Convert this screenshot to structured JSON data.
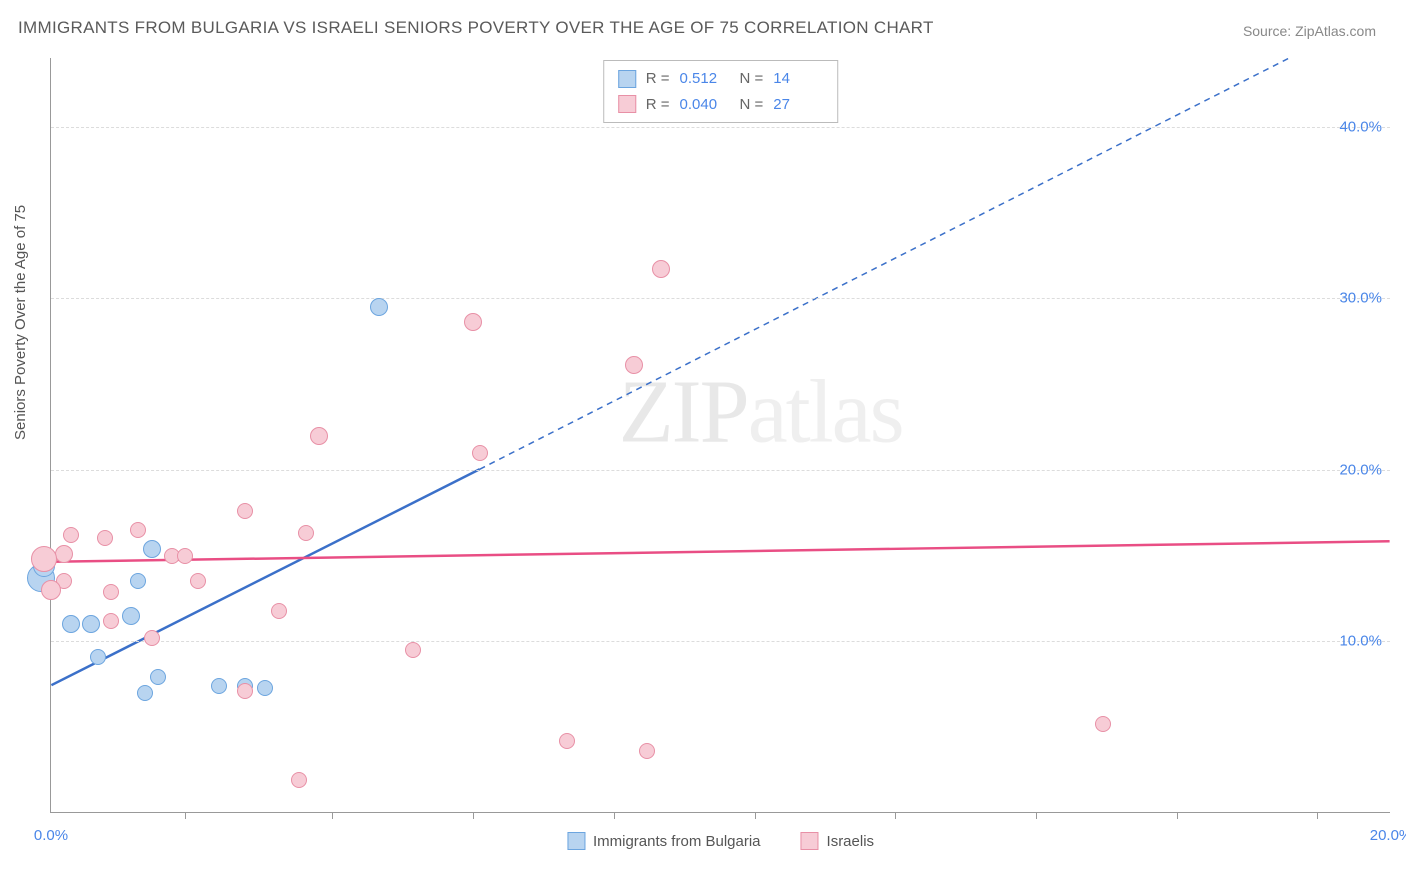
{
  "title": "IMMIGRANTS FROM BULGARIA VS ISRAELI SENIORS POVERTY OVER THE AGE OF 75 CORRELATION CHART",
  "source_label": "Source:",
  "source_name": "ZipAtlas.com",
  "watermark": "ZIPatlas",
  "chart": {
    "type": "scatter",
    "ylabel": "Seniors Poverty Over the Age of 75",
    "xlim": [
      0,
      20
    ],
    "ylim": [
      0,
      44
    ],
    "yticks": [
      10,
      20,
      30,
      40
    ],
    "ytick_labels": [
      "10.0%",
      "20.0%",
      "30.0%",
      "40.0%"
    ],
    "xtick_positions": [
      2.0,
      4.2,
      6.3,
      8.4,
      10.5,
      12.6,
      14.7,
      16.8,
      18.9
    ],
    "xaxis_end_labels": {
      "left": "0.0%",
      "right": "20.0%"
    },
    "background_color": "#ffffff",
    "grid_color": "#dcdcdc",
    "axis_color": "#999999",
    "tick_label_color": "#4a86e8",
    "series": [
      {
        "name": "Immigrants from Bulgaria",
        "key": "bulgaria",
        "fill": "#b8d4f0",
        "stroke": "#6ca5df",
        "trend_stroke": "#3b70c9",
        "R": "0.512",
        "N": "14",
        "points": [
          {
            "x": 0.3,
            "y": 11.0,
            "r": 9
          },
          {
            "x": 0.6,
            "y": 11.0,
            "r": 9
          },
          {
            "x": 1.2,
            "y": 11.5,
            "r": 9
          },
          {
            "x": 0.7,
            "y": 9.1,
            "r": 8
          },
          {
            "x": 1.6,
            "y": 7.9,
            "r": 8
          },
          {
            "x": 1.4,
            "y": 7.0,
            "r": 8
          },
          {
            "x": 2.5,
            "y": 7.4,
            "r": 8
          },
          {
            "x": 2.9,
            "y": 7.4,
            "r": 8
          },
          {
            "x": 3.2,
            "y": 7.3,
            "r": 8
          },
          {
            "x": 1.5,
            "y": 15.4,
            "r": 9
          },
          {
            "x": 1.3,
            "y": 13.5,
            "r": 8
          },
          {
            "x": 4.9,
            "y": 29.5,
            "r": 9
          },
          {
            "x": -0.15,
            "y": 13.7,
            "r": 14
          },
          {
            "x": -0.1,
            "y": 14.4,
            "r": 11
          }
        ],
        "trend": {
          "x1": 0,
          "y1": 7.4,
          "x2_solid": 6.4,
          "y2_solid": 20.0,
          "x2_dash": 18.5,
          "y2_dash": 44.0
        }
      },
      {
        "name": "Israelis",
        "key": "israelis",
        "fill": "#f7ccd6",
        "stroke": "#e890a6",
        "trend_stroke": "#e94e84",
        "R": "0.040",
        "N": "27",
        "points": [
          {
            "x": 0.2,
            "y": 15.1,
            "r": 9
          },
          {
            "x": 0.2,
            "y": 13.5,
            "r": 8
          },
          {
            "x": 0.3,
            "y": 16.2,
            "r": 8
          },
          {
            "x": 0.8,
            "y": 16.0,
            "r": 8
          },
          {
            "x": 0.9,
            "y": 12.9,
            "r": 8
          },
          {
            "x": 0.9,
            "y": 11.2,
            "r": 8
          },
          {
            "x": 1.3,
            "y": 16.5,
            "r": 8
          },
          {
            "x": 1.5,
            "y": 10.2,
            "r": 8
          },
          {
            "x": 1.8,
            "y": 15.0,
            "r": 8
          },
          {
            "x": 2.0,
            "y": 15.0,
            "r": 8
          },
          {
            "x": 2.2,
            "y": 13.5,
            "r": 8
          },
          {
            "x": 2.9,
            "y": 17.6,
            "r": 8
          },
          {
            "x": 2.9,
            "y": 7.1,
            "r": 8
          },
          {
            "x": 3.4,
            "y": 11.8,
            "r": 8
          },
          {
            "x": 3.7,
            "y": 1.9,
            "r": 8
          },
          {
            "x": 3.8,
            "y": 16.3,
            "r": 8
          },
          {
            "x": 4.0,
            "y": 22.0,
            "r": 9
          },
          {
            "x": 5.4,
            "y": 9.5,
            "r": 8
          },
          {
            "x": 6.3,
            "y": 28.6,
            "r": 9
          },
          {
            "x": 6.4,
            "y": 21.0,
            "r": 8
          },
          {
            "x": 7.7,
            "y": 4.2,
            "r": 8
          },
          {
            "x": 8.7,
            "y": 26.1,
            "r": 9
          },
          {
            "x": 8.9,
            "y": 3.6,
            "r": 8
          },
          {
            "x": 9.1,
            "y": 31.7,
            "r": 9
          },
          {
            "x": 15.7,
            "y": 5.2,
            "r": 8
          },
          {
            "x": -0.1,
            "y": 14.8,
            "r": 13
          },
          {
            "x": 0.0,
            "y": 13.0,
            "r": 10
          }
        ],
        "trend": {
          "x1": 0,
          "y1": 14.6,
          "x2_solid": 20,
          "y2_solid": 15.8
        }
      }
    ]
  },
  "legend_top_rows": [
    {
      "series_key": "bulgaria",
      "R_label": "R  =",
      "N_label": "N  ="
    },
    {
      "series_key": "israelis",
      "R_label": "R  =",
      "N_label": "N  ="
    }
  ],
  "legend_bottom": [
    {
      "series_key": "bulgaria"
    },
    {
      "series_key": "israelis"
    }
  ]
}
